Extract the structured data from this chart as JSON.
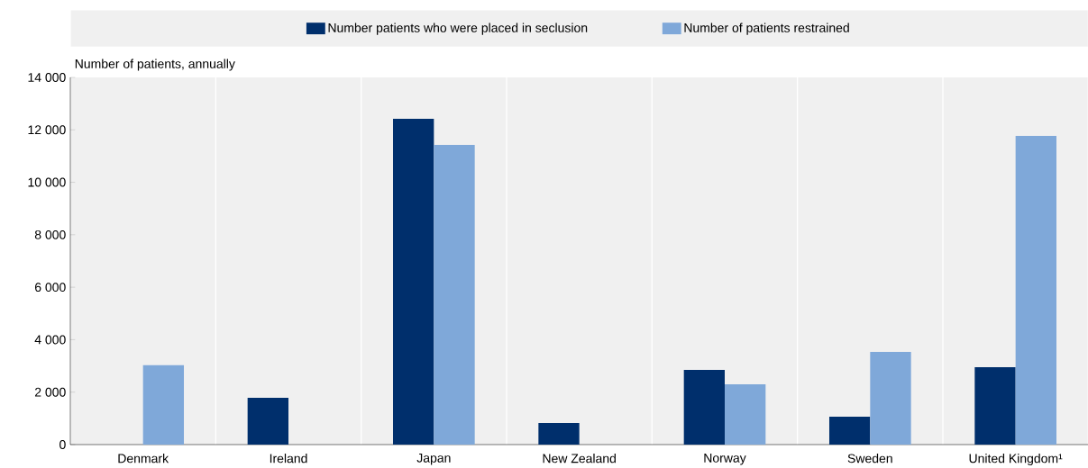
{
  "chart_data": {
    "type": "bar",
    "ylabel": "Number of patients, annually",
    "categories": [
      "Denmark",
      "Ireland",
      "Japan",
      "New Zealand",
      "Norway",
      "Sweden",
      "United Kingdom¹"
    ],
    "series": [
      {
        "name": "Number patients who were placed in seclusion",
        "color": "#002f6c",
        "values": [
          null,
          1780,
          12420,
          820,
          2850,
          1060,
          2950
        ]
      },
      {
        "name": "Number of patients restrained",
        "color": "#7fa8d9",
        "values": [
          3030,
          null,
          11430,
          null,
          2300,
          3530,
          11770
        ]
      }
    ],
    "ylim": [
      0,
      14000
    ],
    "yticks": [
      0,
      {
        "value": 2000,
        "label": "2 000"
      },
      {
        "value": 4000,
        "label": "4 000"
      },
      {
        "value": 6000,
        "label": "6 000"
      },
      {
        "value": 8000,
        "label": "8 000"
      },
      {
        "value": 10000,
        "label": "10 000"
      },
      {
        "value": 12000,
        "label": "12 000"
      },
      {
        "value": 14000,
        "label": "14 000"
      }
    ],
    "grid": "x",
    "legend": "top"
  }
}
